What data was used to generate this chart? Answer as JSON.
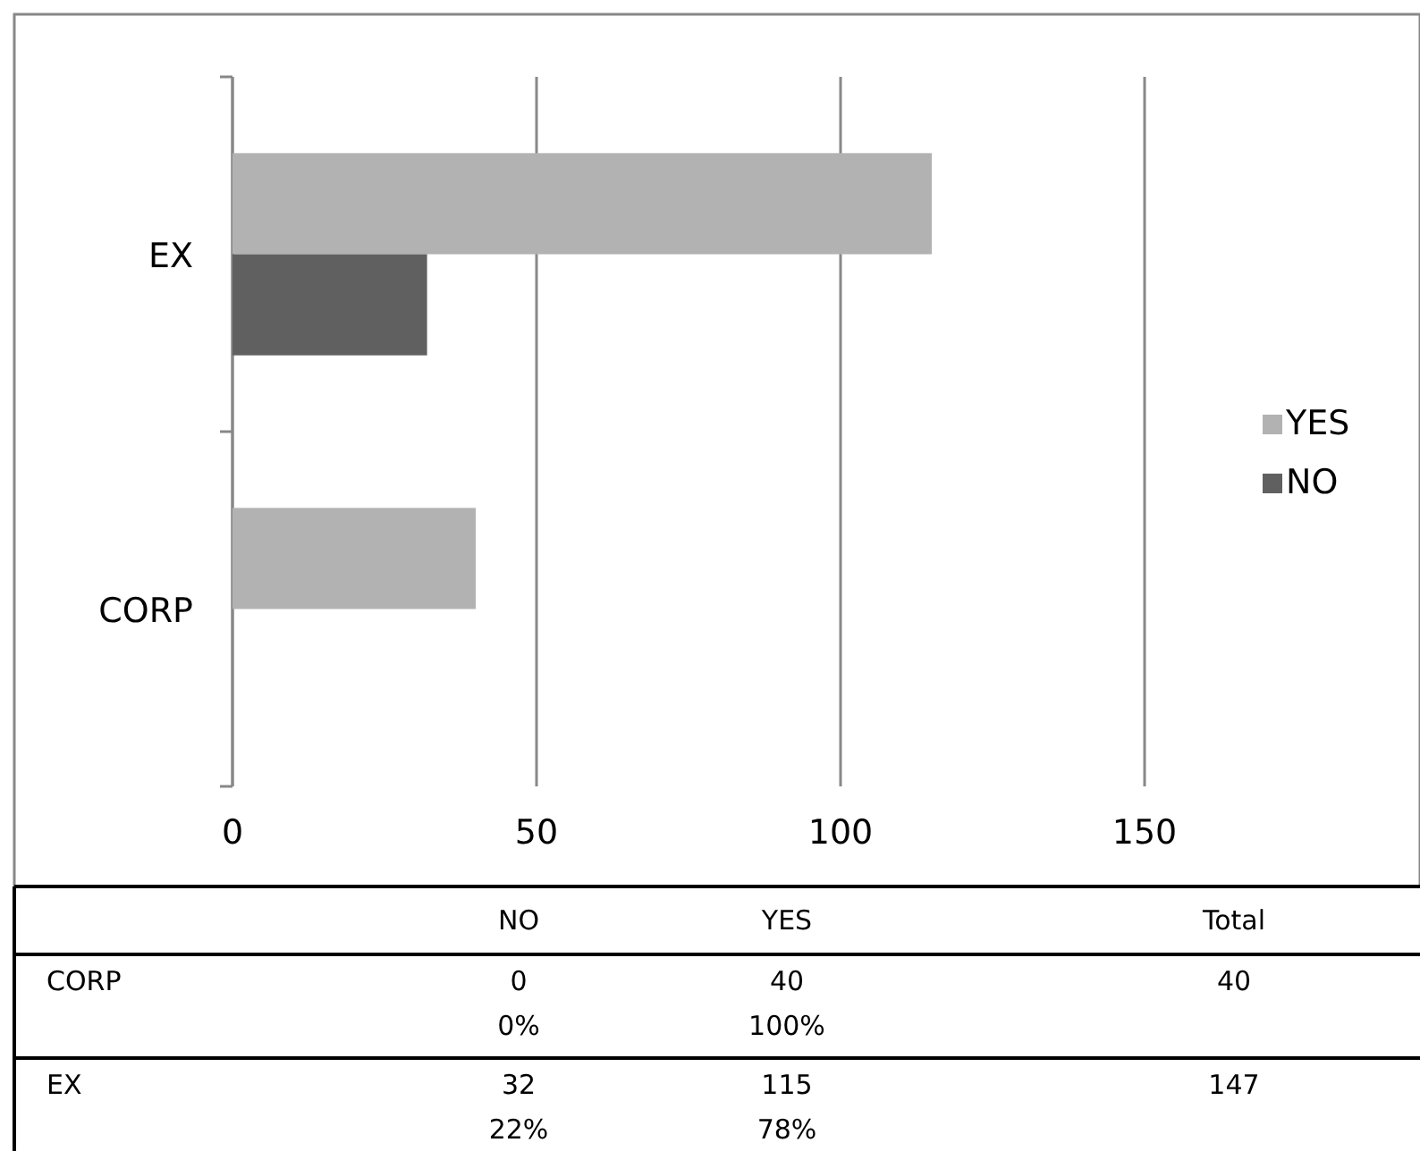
{
  "chart_data": {
    "type": "bar",
    "orientation": "horizontal",
    "categories": [
      "EX",
      "CORP"
    ],
    "series": [
      {
        "name": "YES",
        "color": "#b2b2b2",
        "values": [
          115,
          40
        ]
      },
      {
        "name": "NO",
        "color": "#606060",
        "values": [
          32,
          0
        ]
      }
    ],
    "xlim": [
      0,
      150
    ],
    "xticks": [
      0,
      50,
      100,
      150
    ],
    "grid": "x",
    "legend": "right",
    "annotations": [
      "Total",
      "0",
      "0%",
      "40",
      "100%",
      "40",
      "32",
      "22%",
      "115",
      "78%",
      "147"
    ]
  }
}
